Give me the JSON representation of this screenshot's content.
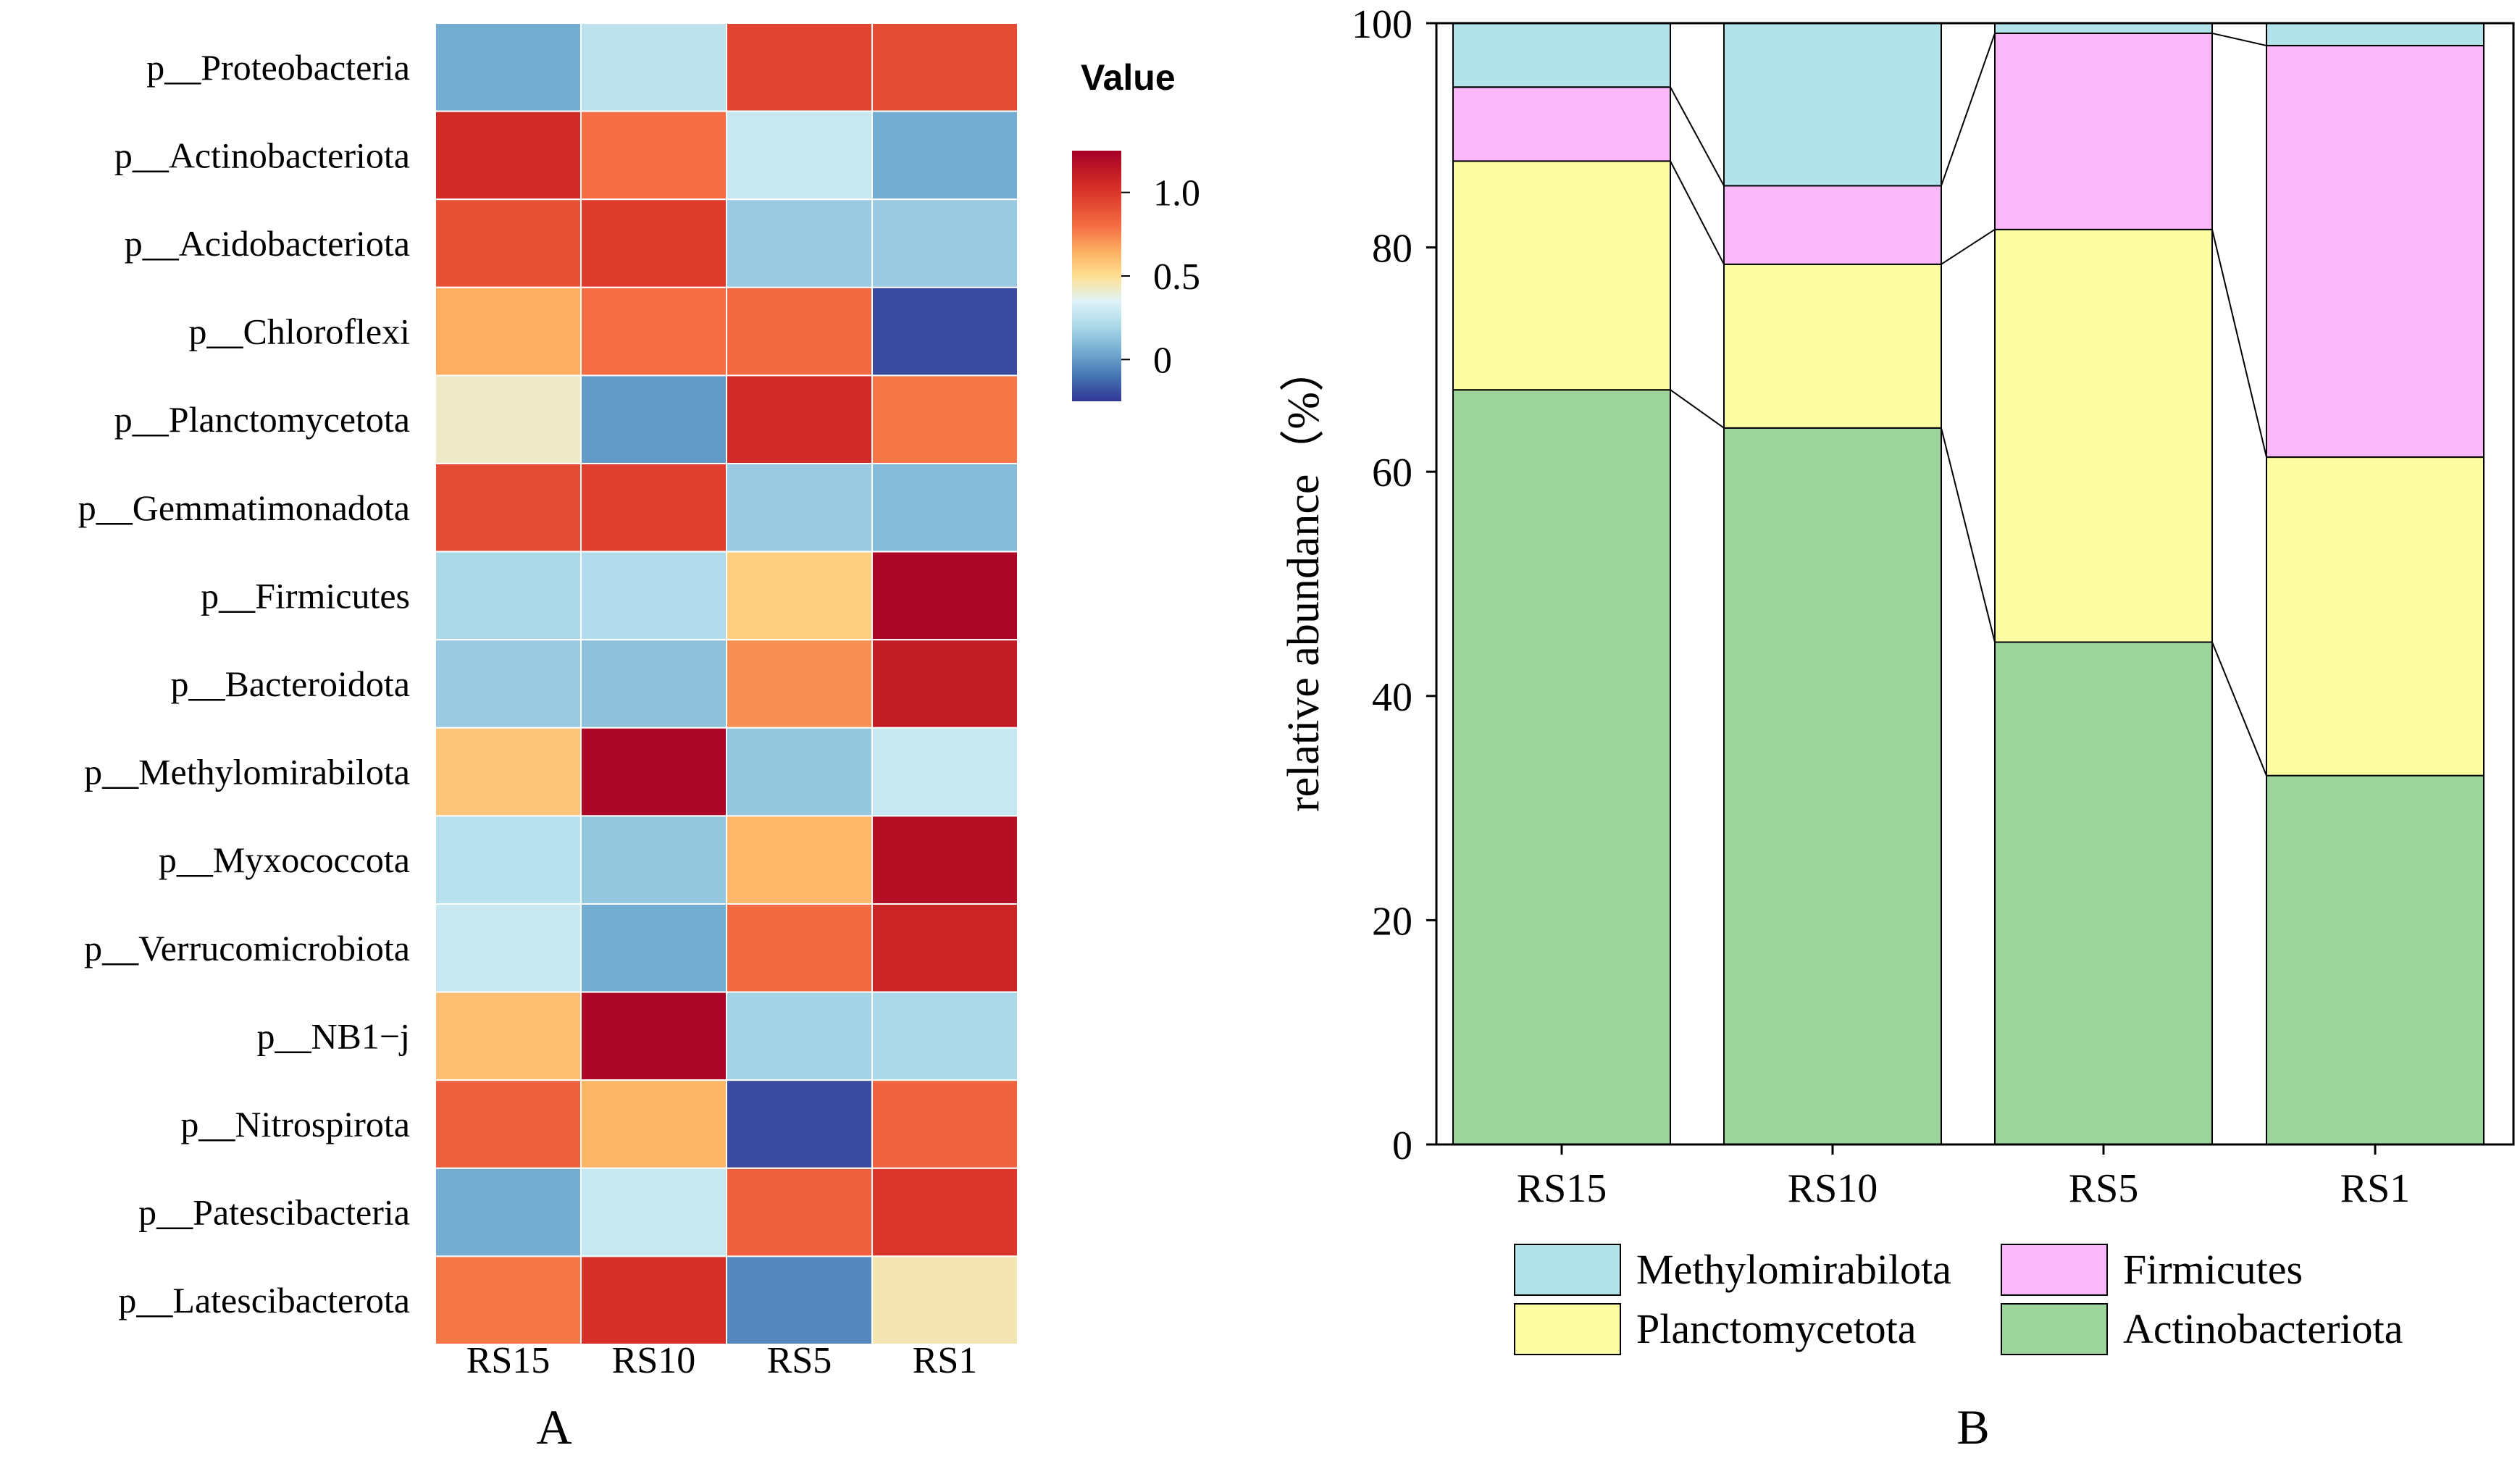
{
  "chart_data": [
    {
      "type": "heatmap",
      "panel_label": "A",
      "rows": [
        "p__Proteobacteria",
        "p__Actinobacteriota",
        "p__Acidobacteriota",
        "p__Chloroflexi",
        "p__Planctomycetota",
        "p__Gemmatimonadota",
        "p__Firmicutes",
        "p__Bacteroidota",
        "p__Methylomirabilota",
        "p__Myxococcota",
        "p__Verrucomicrobiota",
        "p__NB1−j",
        "p__Nitrospirota",
        "p__Patescibacteria",
        "p__Latescibacterota"
      ],
      "columns": [
        "RS15",
        "RS10",
        "RS5",
        "RS1"
      ],
      "values": [
        [
          0.05,
          0.25,
          0.95,
          0.92
        ],
        [
          1.05,
          0.8,
          0.28,
          0.05
        ],
        [
          0.9,
          0.98,
          0.15,
          0.15
        ],
        [
          0.65,
          0.8,
          0.82,
          -0.2
        ],
        [
          0.42,
          0.0,
          1.05,
          0.78
        ],
        [
          0.92,
          0.97,
          0.15,
          0.1
        ],
        [
          0.2,
          0.22,
          0.55,
          1.22
        ],
        [
          0.15,
          0.12,
          0.72,
          1.12
        ],
        [
          0.58,
          1.22,
          0.14,
          0.28
        ],
        [
          0.24,
          0.14,
          0.62,
          1.18
        ],
        [
          0.28,
          0.05,
          0.82,
          1.08
        ],
        [
          0.6,
          1.22,
          0.18,
          0.2
        ],
        [
          0.85,
          0.63,
          -0.2,
          0.84
        ],
        [
          0.05,
          0.28,
          0.85,
          1.0
        ],
        [
          0.78,
          1.03,
          -0.05,
          0.45
        ]
      ],
      "colorbar": {
        "title": "Value",
        "ticks": [
          "1.0",
          "0.5",
          "0"
        ],
        "tick_values": [
          1.0,
          0.5,
          0.0
        ],
        "range": [
          -0.25,
          1.25
        ]
      }
    },
    {
      "type": "bar",
      "stacked": true,
      "panel_label": "B",
      "categories": [
        "RS15",
        "RS10",
        "RS5",
        "RS1"
      ],
      "series": [
        {
          "name": "Actinobacteriota",
          "color": "#9dd49b",
          "values": [
            67.3,
            63.9,
            44.8,
            32.9
          ]
        },
        {
          "name": "Planctomycetota",
          "color": "#fdfda1",
          "values": [
            20.4,
            14.6,
            36.8,
            28.4
          ]
        },
        {
          "name": "Firmicutes",
          "color": "#fbb9fb",
          "values": [
            6.6,
            7.0,
            17.5,
            36.7
          ]
        },
        {
          "name": "Methylomirabilota",
          "color": "#b3e3ea",
          "values": [
            5.7,
            14.5,
            0.9,
            2.0
          ]
        }
      ],
      "ylabel": "relative abundance（%）",
      "ylim": [
        0,
        100
      ],
      "yticks": [
        "0",
        "20",
        "40",
        "60",
        "80",
        "100"
      ],
      "legend": [
        "Methylomirabilota",
        "Firmicutes",
        "Planctomycetota",
        "Actinobacteriota"
      ]
    }
  ]
}
